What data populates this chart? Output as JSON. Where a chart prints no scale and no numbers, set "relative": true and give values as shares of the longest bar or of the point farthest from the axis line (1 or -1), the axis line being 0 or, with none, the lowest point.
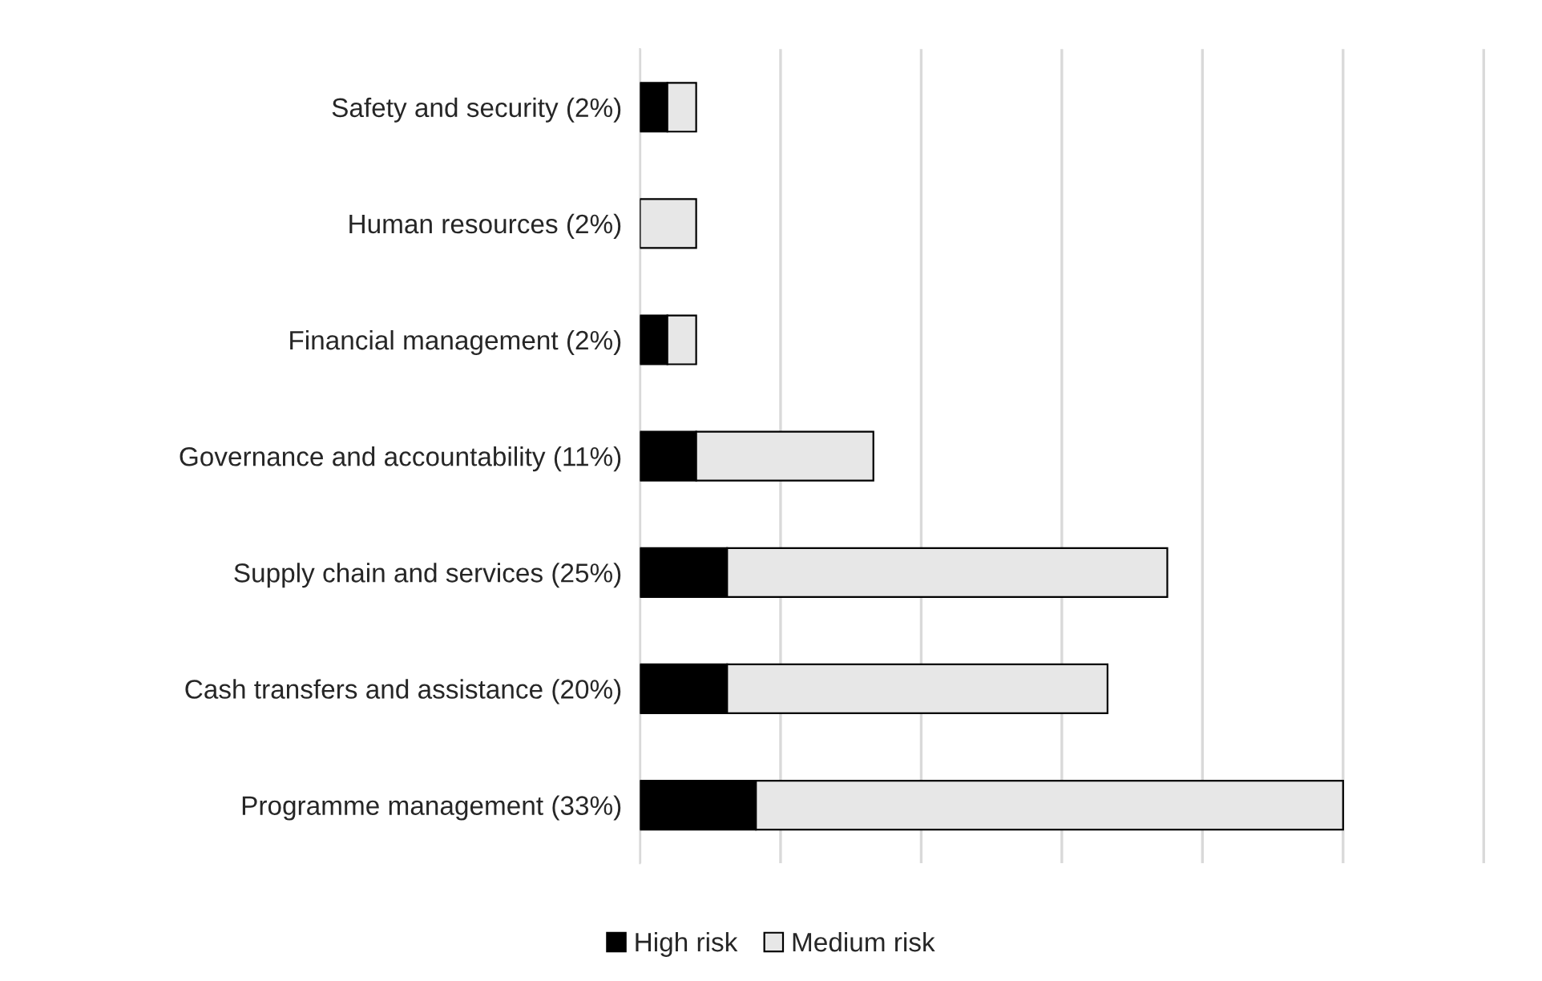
{
  "chart_data": {
    "type": "bar",
    "orientation": "horizontal",
    "stacked": true,
    "relative": true,
    "categories": [
      "Safety and security (2%)",
      "Human resources (2%)",
      "Financial management (2%)",
      "Governance and accountability (11%)",
      "Supply chain and services (25%)",
      "Cash transfers and assistance (20%)",
      "Programme management (33%)"
    ],
    "series": [
      {
        "name": "High risk",
        "color": "#000000",
        "values": [
          0.039,
          0,
          0.039,
          0.08,
          0.124,
          0.124,
          0.165
        ]
      },
      {
        "name": "Medium risk",
        "color": "#e7e7e7",
        "values": [
          0.041,
          0.08,
          0.041,
          0.252,
          0.626,
          0.541,
          0.835
        ]
      }
    ],
    "grid": "x",
    "legend": "bottom",
    "tick_labels": "y"
  }
}
